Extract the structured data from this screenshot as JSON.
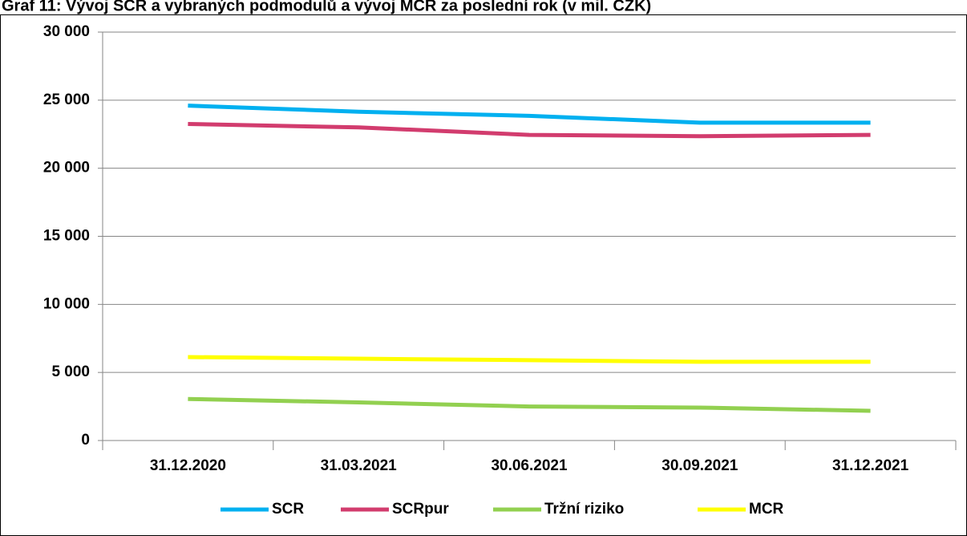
{
  "chart_data": {
    "type": "line",
    "title": "Graf 11: Vývoj SCR a vybraných podmodulů a vývoj MCR za poslední rok (v mil. CZK)",
    "categories": [
      "31.12.2020",
      "31.03.2021",
      "30.06.2021",
      "30.09.2021",
      "31.12.2021"
    ],
    "series": [
      {
        "name": "SCR",
        "color": "#00b0f0",
        "values": [
          24600,
          24150,
          23850,
          23350,
          23350
        ]
      },
      {
        "name": "SCRpur",
        "color": "#d23c6e",
        "values": [
          23250,
          23000,
          22450,
          22350,
          22450
        ]
      },
      {
        "name": "Tržní riziko",
        "color": "#92d050",
        "values": [
          3050,
          2800,
          2500,
          2420,
          2180
        ]
      },
      {
        "name": "MCR",
        "color": "#ffff00",
        "values": [
          6130,
          6010,
          5900,
          5780,
          5780
        ]
      }
    ],
    "ylim": [
      0,
      30000
    ],
    "yticks": [
      0,
      {
        "value": 5000,
        "label": "5 000"
      },
      {
        "value": 10000,
        "label": "10 000"
      },
      {
        "value": 15000,
        "label": "15 000"
      },
      {
        "value": 20000,
        "label": "20 000"
      },
      {
        "value": 25000,
        "label": "25 000"
      },
      {
        "value": 30000,
        "label": "30 000"
      }
    ],
    "grid": true,
    "legend": "bottom"
  }
}
